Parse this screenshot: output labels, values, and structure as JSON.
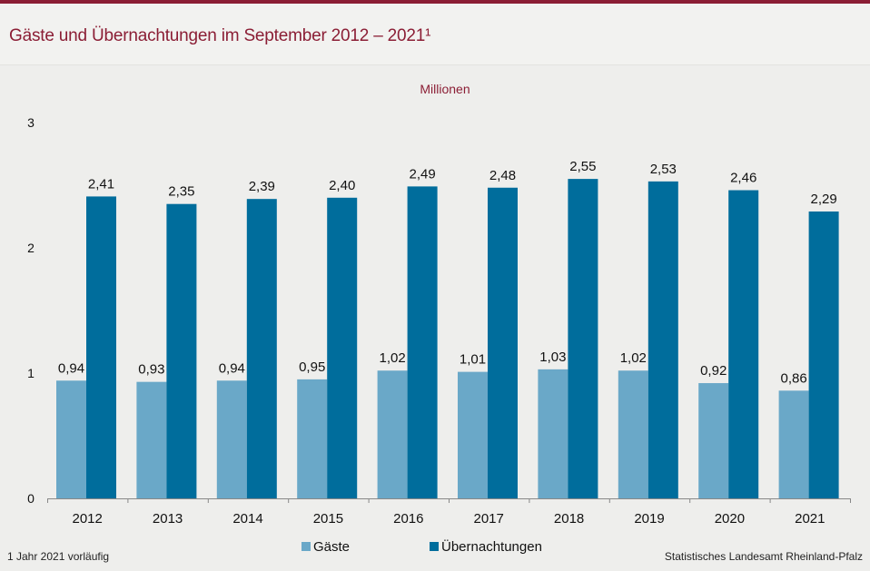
{
  "title": "Gäste und Übernachtungen im September 2012 – 2021¹",
  "footnote": "1 Jahr  2021 vorläufig",
  "source": "Statistisches Landesamt  Rheinland-Pfalz",
  "chart_data": {
    "type": "bar",
    "unit_label": "Millionen",
    "categories": [
      "2012",
      "2013",
      "2014",
      "2015",
      "2016",
      "2017",
      "2018",
      "2019",
      "2020",
      "2021"
    ],
    "series": [
      {
        "name": "Gäste",
        "color": "#6aa8c8",
        "values": [
          0.94,
          0.93,
          0.94,
          0.95,
          1.02,
          1.01,
          1.03,
          1.02,
          0.92,
          0.86
        ],
        "labels": [
          "0,94",
          "0,93",
          "0,94",
          "0,95",
          "1,02",
          "1,01",
          "1,03",
          "1,02",
          "0,92",
          "0,86"
        ]
      },
      {
        "name": "Übernachtungen",
        "color": "#006d9c",
        "values": [
          2.41,
          2.35,
          2.39,
          2.4,
          2.49,
          2.48,
          2.55,
          2.53,
          2.46,
          2.29
        ],
        "labels": [
          "2,41",
          "2,35",
          "2,39",
          "2,40",
          "2,49",
          "2,48",
          "2,55",
          "2,53",
          "2,46",
          "2,29"
        ]
      }
    ],
    "y_ticks": [
      "0",
      "1",
      "2",
      "3"
    ],
    "ylim": [
      0,
      3
    ],
    "grid": false,
    "legend": "bottom-center"
  }
}
